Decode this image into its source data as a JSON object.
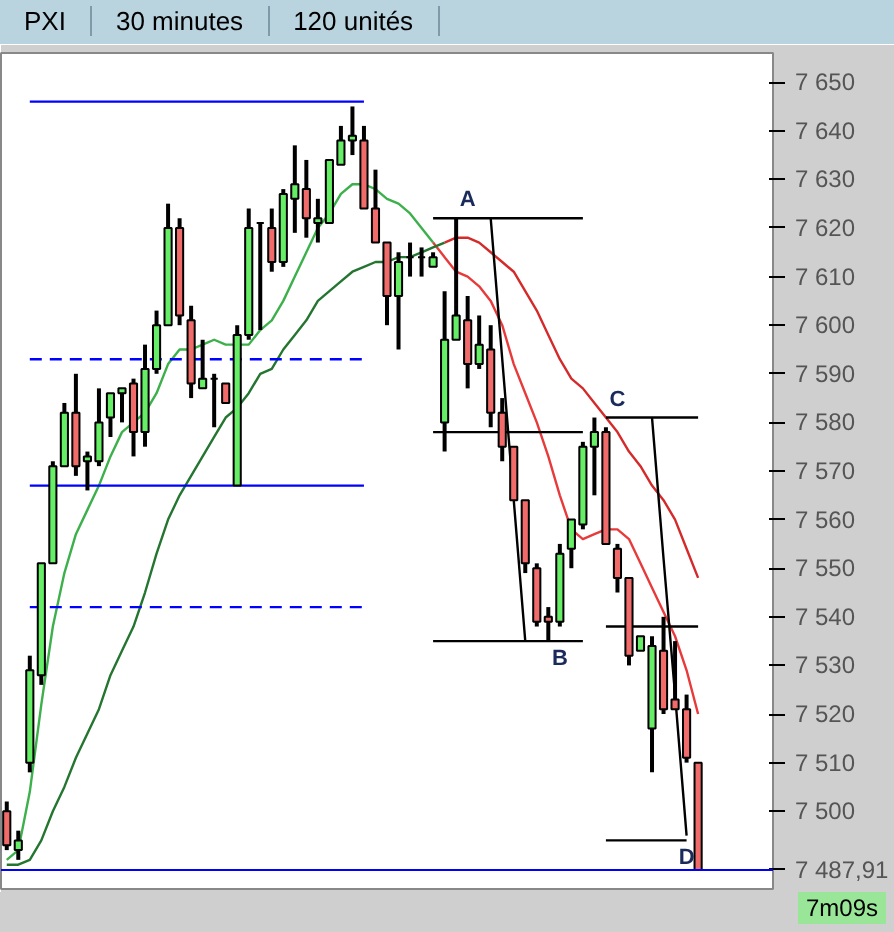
{
  "chart_data": {
    "type": "candlestick",
    "title": "PXI",
    "subtitle": "30 minutes",
    "annotations": [
      "120 unités",
      "7m09s"
    ],
    "categories": [
      null,
      null,
      null,
      null,
      null,
      null,
      null,
      null,
      null,
      null,
      null,
      null,
      null,
      null,
      null,
      null,
      null,
      null,
      null,
      null,
      null,
      null,
      null,
      null,
      null,
      null,
      null,
      null,
      null,
      null,
      null,
      null,
      null,
      null,
      null,
      null,
      null,
      null,
      null,
      null,
      null,
      null,
      null,
      null,
      null,
      null,
      null,
      null,
      null,
      null,
      null,
      null,
      null,
      null,
      null,
      null,
      null,
      null,
      null,
      null,
      null
    ],
    "ohlc": [
      [
        7500,
        7502,
        7492,
        7493
      ],
      [
        7492,
        7496,
        7490,
        7494
      ],
      [
        7510,
        7532,
        7508,
        7529
      ],
      [
        7528,
        7551,
        7526,
        7551
      ],
      [
        7551,
        7572,
        7551,
        7571
      ],
      [
        7571,
        7584,
        7571,
        7582
      ],
      [
        7582,
        7590,
        7569,
        7571
      ],
      [
        7572,
        7574,
        7566,
        7573
      ],
      [
        7572,
        7587,
        7571,
        7580
      ],
      [
        7581,
        7586,
        7577,
        7586
      ],
      [
        7586,
        7587,
        7580,
        7587
      ],
      [
        7588,
        7589,
        7573,
        7578
      ],
      [
        7578,
        7596,
        7575,
        7591
      ],
      [
        7591,
        7603,
        7590,
        7600
      ],
      [
        7600,
        7625,
        7600,
        7620
      ],
      [
        7620,
        7622,
        7600,
        7602
      ],
      [
        7601,
        7604,
        7585,
        7588
      ],
      [
        7587,
        7597,
        7587,
        7589
      ],
      [
        7589,
        7590,
        7579,
        7589
      ],
      [
        7588,
        7588,
        7584,
        7584
      ],
      [
        7567,
        7600,
        7567,
        7598
      ],
      [
        7598,
        7624,
        7597,
        7620
      ],
      [
        7621,
        7621,
        7599,
        7621
      ],
      [
        7620,
        7624,
        7611,
        7613
      ],
      [
        7613,
        7628,
        7612,
        7627
      ],
      [
        7626,
        7637,
        7619,
        7629
      ],
      [
        7628,
        7634,
        7618,
        7622
      ],
      [
        7621,
        7626,
        7617,
        7622
      ],
      [
        7621,
        7634,
        7621,
        7634
      ],
      [
        7633,
        7641,
        7633,
        7638
      ],
      [
        7638,
        7645,
        7635,
        7639
      ],
      [
        7638,
        7641,
        7624,
        7624
      ],
      [
        7624,
        7632,
        7617,
        7617
      ],
      [
        7617,
        7617,
        7600,
        7606
      ],
      [
        7606,
        7615,
        7595,
        7613
      ],
      [
        7614,
        7617,
        7610,
        7614
      ],
      [
        7614,
        7616,
        7610,
        7614
      ],
      [
        7612,
        7615,
        7612,
        7614
      ],
      [
        7580,
        7607,
        7574,
        7597
      ],
      [
        7597,
        7622,
        7597,
        7602
      ],
      [
        7601,
        7606,
        7587,
        7592
      ],
      [
        7592,
        7602,
        7591,
        7596
      ],
      [
        7595,
        7600,
        7579,
        7582
      ],
      [
        7582,
        7585,
        7572,
        7575
      ],
      [
        7575,
        7575,
        7564,
        7564
      ],
      [
        7564,
        7564,
        7549,
        7551
      ],
      [
        7550,
        7551,
        7538,
        7539
      ],
      [
        7540,
        7542,
        7535,
        7539
      ],
      [
        7539,
        7555,
        7538,
        7553
      ],
      [
        7554,
        7560,
        7550,
        7560
      ],
      [
        7559,
        7576,
        7558,
        7575
      ],
      [
        7575,
        7581,
        7565,
        7578
      ],
      [
        7578,
        7579,
        7555,
        7555
      ],
      [
        7554,
        7555,
        7545,
        7548
      ],
      [
        7548,
        7548,
        7530,
        7532
      ],
      [
        7533,
        7536,
        7533,
        7536
      ],
      [
        7517,
        7536,
        7508,
        7534
      ],
      [
        7533,
        7540,
        7520,
        7521
      ],
      [
        7523,
        7535,
        7521,
        7521
      ],
      [
        7521,
        7524,
        7510,
        7511
      ],
      [
        7510,
        7510,
        7487.91,
        7487.91
      ]
    ],
    "colors": [
      "#f26b6b",
      "#66ee66",
      "#66ee66",
      "#66ee66",
      "#66ee66",
      "#66ee66",
      "#f26b6b",
      "#66ee66",
      "#66ee66",
      "#66ee66",
      "#66ee66",
      "#f26b6b",
      "#66ee66",
      "#66ee66",
      "#66ee66",
      "#f26b6b",
      "#f26b6b",
      "#66ee66",
      "#000000",
      "#f26b6b",
      "#66ee66",
      "#66ee66",
      "#000000",
      "#f26b6b",
      "#66ee66",
      "#66ee66",
      "#f26b6b",
      "#66ee66",
      "#66ee66",
      "#66ee66",
      "#66ee66",
      "#f26b6b",
      "#f26b6b",
      "#f26b6b",
      "#66ee66",
      "#000000",
      "#000000",
      "#66ee66",
      "#66ee66",
      "#66ee66",
      "#f26b6b",
      "#66ee66",
      "#f26b6b",
      "#f26b6b",
      "#f26b6b",
      "#f26b6b",
      "#f26b6b",
      "#f26b6b",
      "#66ee66",
      "#66ee66",
      "#66ee66",
      "#66ee66",
      "#f26b6b",
      "#f26b6b",
      "#f26b6b",
      "#66ee66",
      "#66ee66",
      "#f26b6b",
      "#f26b6b",
      "#f26b6b",
      "#f26b6b"
    ],
    "series": [
      {
        "type": "line",
        "color": "#3cb04a",
        "values": [
          7490,
          7492,
          7504,
          7522,
          7538,
          7549,
          7557,
          7562,
          7567,
          7573,
          7578,
          7580,
          7582,
          7586,
          7592,
          7595,
          7595,
          7596,
          7597,
          7596,
          7596,
          7596,
          7599,
          7601,
          7605,
          7610,
          7615,
          7620,
          7623,
          7627,
          7629,
          7629,
          7628,
          7626,
          7625,
          7623,
          7620,
          7617,
          null,
          null,
          null,
          null,
          null,
          null,
          null,
          null,
          null,
          null,
          null,
          null,
          null,
          null,
          null,
          null,
          null,
          null,
          null,
          null,
          null,
          null,
          null
        ]
      },
      {
        "type": "line",
        "color": "#e83a3a",
        "values": [
          null,
          null,
          null,
          null,
          null,
          null,
          null,
          null,
          null,
          null,
          null,
          null,
          null,
          null,
          null,
          null,
          null,
          null,
          null,
          null,
          null,
          null,
          null,
          null,
          null,
          null,
          null,
          null,
          null,
          null,
          null,
          null,
          null,
          null,
          null,
          null,
          null,
          7617,
          7614,
          7611,
          7610,
          7608,
          7605,
          7600,
          7592,
          7586,
          7580,
          7573,
          7565,
          7558,
          7556,
          7557,
          7558,
          7558,
          7556,
          7551,
          7546,
          7541,
          7536,
          7529,
          7520
        ]
      },
      {
        "type": "line",
        "color": "#23752f",
        "values": [
          7489,
          7489,
          7490,
          7494,
          7500,
          7505,
          7511,
          7516,
          7521,
          7528,
          7533,
          7538,
          7545,
          7553,
          7560,
          7565,
          7569,
          7573,
          7577,
          7581,
          7583,
          7586,
          7590,
          7591,
          7595,
          7598,
          7601,
          7605,
          7607,
          7609,
          7611,
          7612,
          7613,
          7613,
          7614,
          7614,
          7615,
          7616,
          7617,
          null,
          null,
          null,
          null,
          null,
          null,
          null,
          null,
          null,
          null,
          null,
          null,
          null,
          null,
          null,
          null,
          null,
          null,
          null,
          null,
          null,
          null
        ]
      },
      {
        "type": "line",
        "color": "#d42a2a",
        "values": [
          null,
          null,
          null,
          null,
          null,
          null,
          null,
          null,
          null,
          null,
          null,
          null,
          null,
          null,
          null,
          null,
          null,
          null,
          null,
          null,
          null,
          null,
          null,
          null,
          null,
          null,
          null,
          null,
          null,
          null,
          null,
          null,
          null,
          null,
          null,
          null,
          null,
          null,
          7617,
          7618,
          7618,
          7617,
          7615,
          7613,
          7611,
          7607,
          7603,
          7598,
          7593,
          7589,
          7587,
          7584,
          7581,
          7578,
          7574,
          7571,
          7567,
          7564,
          7560,
          7554,
          7548
        ]
      },
      {
        "type": "line",
        "color": "#0000ff",
        "values": [
          null,
          null,
          7646,
          7646,
          7646,
          7646,
          7646,
          7646,
          7646,
          7646,
          7646,
          7646,
          7646,
          7646,
          7646,
          7646,
          7646,
          7646,
          7646,
          7646,
          7646,
          7646,
          7646,
          7646,
          7646,
          7646,
          7646,
          7646,
          7646,
          7646,
          7646,
          7646,
          null,
          null,
          null,
          null,
          null,
          null,
          null,
          null,
          null,
          null,
          null,
          null,
          null,
          null,
          null,
          null,
          null,
          null,
          null,
          null,
          null,
          null,
          null,
          null,
          null,
          null,
          null,
          null,
          null
        ]
      },
      {
        "type": "line",
        "color": "#0000ff",
        "values": [
          null,
          null,
          7567,
          7567,
          7567,
          7567,
          7567,
          7567,
          7567,
          7567,
          7567,
          7567,
          7567,
          7567,
          7567,
          7567,
          7567,
          7567,
          7567,
          7567,
          7567,
          7567,
          7567,
          7567,
          7567,
          7567,
          7567,
          7567,
          7567,
          7567,
          7567,
          7567,
          null,
          null,
          null,
          null,
          null,
          null,
          null,
          null,
          null,
          null,
          null,
          null,
          null,
          null,
          null,
          null,
          null,
          null,
          null,
          null,
          null,
          null,
          null,
          null,
          null,
          null,
          null,
          null,
          null
        ]
      },
      {
        "type": "line",
        "color": "#0000ff",
        "line_style": "dashed",
        "values": [
          null,
          null,
          7593,
          7593,
          7593,
          7593,
          7593,
          7593,
          7593,
          7593,
          7593,
          7593,
          7593,
          7593,
          7593,
          7593,
          7593,
          7593,
          7593,
          7593,
          7593,
          7593,
          7593,
          7593,
          7593,
          7593,
          7593,
          7593,
          7593,
          7593,
          7593,
          7593,
          null,
          null,
          null,
          null,
          null,
          null,
          null,
          null,
          null,
          null,
          null,
          null,
          null,
          null,
          null,
          null,
          null,
          null,
          null,
          null,
          null,
          null,
          null,
          null,
          null,
          null,
          null,
          null,
          null
        ]
      },
      {
        "type": "line",
        "color": "#0000ff",
        "line_style": "dashed",
        "values": [
          null,
          null,
          7542,
          7542,
          7542,
          7542,
          7542,
          7542,
          7542,
          7542,
          7542,
          7542,
          7542,
          7542,
          7542,
          7542,
          7542,
          7542,
          7542,
          7542,
          7542,
          7542,
          7542,
          7542,
          7542,
          7542,
          7542,
          7542,
          7542,
          7542,
          7542,
          7542,
          null,
          null,
          null,
          null,
          null,
          null,
          null,
          null,
          null,
          null,
          null,
          null,
          null,
          null,
          null,
          null,
          null,
          null,
          null,
          null,
          null,
          null,
          null,
          null,
          null,
          null,
          null,
          null,
          null
        ]
      },
      {
        "type": "line",
        "color": "#000000",
        "values": [
          null,
          null,
          null,
          null,
          null,
          null,
          null,
          null,
          null,
          null,
          null,
          null,
          null,
          null,
          null,
          null,
          null,
          null,
          null,
          null,
          null,
          null,
          null,
          null,
          null,
          null,
          null,
          null,
          null,
          null,
          null,
          null,
          null,
          null,
          null,
          null,
          null,
          7622,
          7622,
          7622,
          7622,
          7622,
          7622,
          7622,
          7622,
          7622,
          7622,
          7622,
          7622,
          7622,
          7622,
          null,
          null,
          null,
          null,
          null,
          null,
          null,
          null,
          null,
          null
        ],
        "value_labels": [
          null,
          null,
          null,
          null,
          null,
          null,
          null,
          null,
          null,
          null,
          null,
          null,
          null,
          null,
          null,
          null,
          null,
          null,
          null,
          null,
          null,
          null,
          null,
          null,
          null,
          null,
          null,
          null,
          null,
          null,
          null,
          null,
          null,
          null,
          null,
          null,
          null,
          null,
          null,
          null,
          "A",
          null,
          null,
          null,
          null,
          null,
          null,
          null,
          null,
          null,
          null,
          null,
          null,
          null,
          null,
          null,
          null,
          null,
          null,
          null,
          null
        ]
      },
      {
        "type": "line",
        "color": "#000000",
        "values": [
          null,
          null,
          null,
          null,
          null,
          null,
          null,
          null,
          null,
          null,
          null,
          null,
          null,
          null,
          null,
          null,
          null,
          null,
          null,
          null,
          null,
          null,
          null,
          null,
          null,
          null,
          null,
          null,
          null,
          null,
          null,
          null,
          null,
          null,
          null,
          null,
          null,
          7578,
          7578,
          7578,
          7578,
          7578,
          7578,
          7578,
          7578,
          7578,
          7578,
          7578,
          7578,
          7578,
          7578,
          null,
          null,
          null,
          null,
          null,
          null,
          null,
          null,
          null,
          null
        ]
      },
      {
        "type": "line",
        "color": "#000000",
        "values": [
          null,
          null,
          null,
          null,
          null,
          null,
          null,
          null,
          null,
          null,
          null,
          null,
          null,
          null,
          null,
          null,
          null,
          null,
          null,
          null,
          null,
          null,
          null,
          null,
          null,
          null,
          null,
          null,
          null,
          null,
          null,
          null,
          null,
          null,
          null,
          null,
          null,
          7535,
          7535,
          7535,
          7535,
          7535,
          7535,
          7535,
          7535,
          7535,
          7535,
          7535,
          7535,
          7535,
          7535,
          null,
          null,
          null,
          null,
          null,
          null,
          null,
          null,
          null,
          null
        ],
        "value_labels": [
          null,
          null,
          null,
          null,
          null,
          null,
          null,
          null,
          null,
          null,
          null,
          null,
          null,
          null,
          null,
          null,
          null,
          null,
          null,
          null,
          null,
          null,
          null,
          null,
          null,
          null,
          null,
          null,
          null,
          null,
          null,
          null,
          null,
          null,
          null,
          null,
          null,
          null,
          null,
          null,
          null,
          null,
          null,
          null,
          null,
          null,
          null,
          null,
          "B",
          null,
          null,
          null,
          null,
          null,
          null,
          null,
          null,
          null,
          null,
          null,
          null
        ]
      },
      {
        "type": "line",
        "color": "#000000",
        "values": [
          null,
          null,
          null,
          null,
          null,
          null,
          null,
          null,
          null,
          null,
          null,
          null,
          null,
          null,
          null,
          null,
          null,
          null,
          null,
          null,
          null,
          null,
          null,
          null,
          null,
          null,
          null,
          null,
          null,
          null,
          null,
          null,
          null,
          null,
          null,
          null,
          null,
          null,
          null,
          null,
          null,
          null,
          7622,
          7593,
          7564,
          7535,
          null,
          null,
          null,
          null,
          null,
          null,
          null,
          null,
          null,
          null,
          null,
          null,
          null,
          null,
          null
        ]
      },
      {
        "type": "line",
        "color": "#000000",
        "values": [
          null,
          null,
          null,
          null,
          null,
          null,
          null,
          null,
          null,
          null,
          null,
          null,
          null,
          null,
          null,
          null,
          null,
          null,
          null,
          null,
          null,
          null,
          null,
          null,
          null,
          null,
          null,
          null,
          null,
          null,
          null,
          null,
          null,
          null,
          null,
          null,
          null,
          null,
          null,
          null,
          null,
          null,
          null,
          null,
          null,
          null,
          null,
          null,
          null,
          null,
          null,
          null,
          7581,
          7581,
          7581,
          7581,
          7581,
          7581,
          7581,
          7581,
          7581
        ],
        "value_labels": [
          null,
          null,
          null,
          null,
          null,
          null,
          null,
          null,
          null,
          null,
          null,
          null,
          null,
          null,
          null,
          null,
          null,
          null,
          null,
          null,
          null,
          null,
          null,
          null,
          null,
          null,
          null,
          null,
          null,
          null,
          null,
          null,
          null,
          null,
          null,
          null,
          null,
          null,
          null,
          null,
          null,
          null,
          null,
          null,
          null,
          null,
          null,
          null,
          null,
          null,
          null,
          null,
          null,
          "C",
          null,
          null,
          null,
          null,
          null,
          null,
          null
        ]
      },
      {
        "type": "line",
        "color": "#000000",
        "values": [
          null,
          null,
          null,
          null,
          null,
          null,
          null,
          null,
          null,
          null,
          null,
          null,
          null,
          null,
          null,
          null,
          null,
          null,
          null,
          null,
          null,
          null,
          null,
          null,
          null,
          null,
          null,
          null,
          null,
          null,
          null,
          null,
          null,
          null,
          null,
          null,
          null,
          null,
          null,
          null,
          null,
          null,
          null,
          null,
          null,
          null,
          null,
          null,
          null,
          null,
          null,
          null,
          7538,
          7538,
          7538,
          7538,
          7538,
          7538,
          7538,
          7538,
          7538
        ]
      },
      {
        "type": "line",
        "color": "#000000",
        "values": [
          null,
          null,
          null,
          null,
          null,
          null,
          null,
          null,
          null,
          null,
          null,
          null,
          null,
          null,
          null,
          null,
          null,
          null,
          null,
          null,
          null,
          null,
          null,
          null,
          null,
          null,
          null,
          null,
          null,
          null,
          null,
          null,
          null,
          null,
          null,
          null,
          null,
          null,
          null,
          null,
          null,
          null,
          null,
          null,
          null,
          null,
          null,
          null,
          null,
          null,
          null,
          null,
          7494,
          7494,
          7494,
          7494,
          7494,
          7494,
          7494,
          7494,
          null
        ],
        "value_labels": [
          null,
          null,
          null,
          null,
          null,
          null,
          null,
          null,
          null,
          null,
          null,
          null,
          null,
          null,
          null,
          null,
          null,
          null,
          null,
          null,
          null,
          null,
          null,
          null,
          null,
          null,
          null,
          null,
          null,
          null,
          null,
          null,
          null,
          null,
          null,
          null,
          null,
          null,
          null,
          null,
          null,
          null,
          null,
          null,
          null,
          null,
          null,
          null,
          null,
          null,
          null,
          null,
          null,
          null,
          null,
          null,
          null,
          null,
          null,
          "D",
          null
        ]
      },
      {
        "type": "line",
        "color": "#000000",
        "values": [
          null,
          null,
          null,
          null,
          null,
          null,
          null,
          null,
          null,
          null,
          null,
          null,
          null,
          null,
          null,
          null,
          null,
          null,
          null,
          null,
          null,
          null,
          null,
          null,
          null,
          null,
          null,
          null,
          null,
          null,
          null,
          null,
          null,
          null,
          null,
          null,
          null,
          null,
          null,
          null,
          null,
          null,
          null,
          null,
          null,
          null,
          null,
          null,
          null,
          null,
          null,
          null,
          null,
          null,
          null,
          null,
          7581,
          7552,
          7524,
          7495,
          null
        ]
      }
    ],
    "ref_lines": [
      {
        "axis": "y",
        "value": 7487.91,
        "label": "7 487,91",
        "color": "#0000ff"
      }
    ],
    "ylim": [
      7484,
      7656
    ],
    "yticks": [
      {
        "value": 7500,
        "label": "7 500"
      },
      {
        "value": 7510,
        "label": "7 510"
      },
      {
        "value": 7520,
        "label": "7 520"
      },
      {
        "value": 7530,
        "label": "7 530"
      },
      {
        "value": 7540,
        "label": "7 540"
      },
      {
        "value": 7550,
        "label": "7 550"
      },
      {
        "value": 7560,
        "label": "7 560"
      },
      {
        "value": 7570,
        "label": "7 570"
      },
      {
        "value": 7580,
        "label": "7 580"
      },
      {
        "value": 7590,
        "label": "7 590"
      },
      {
        "value": 7600,
        "label": "7 600"
      },
      {
        "value": 7610,
        "label": "7 610"
      },
      {
        "value": 7620,
        "label": "7 620"
      },
      {
        "value": 7630,
        "label": "7 630"
      },
      {
        "value": 7640,
        "label": "7 640"
      },
      {
        "value": 7650,
        "label": "7 650"
      }
    ],
    "tick_labels": "y"
  }
}
